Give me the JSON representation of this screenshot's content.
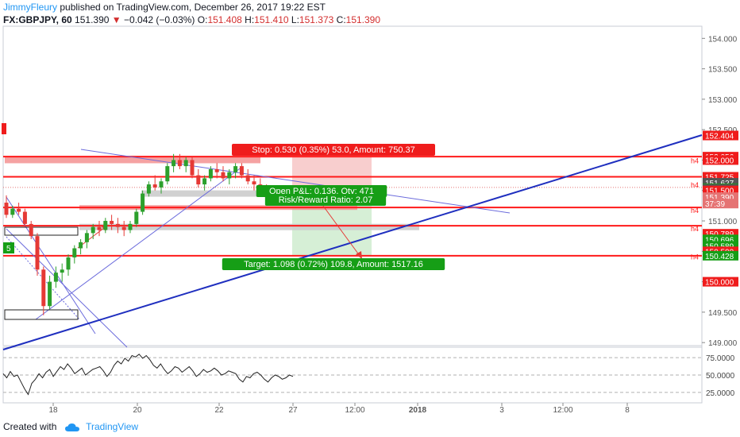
{
  "header": {
    "author": "JimmyFleury",
    "published": "published on TradingView.com, December 26, 2017 19:22 EST",
    "symbol": "FX:GBPJPY, 60",
    "price": "151.390",
    "change_arrow": "▼",
    "change": "−0.042 (−0.03%)",
    "o_label": "O:",
    "o": "151.408",
    "h_label": "H:",
    "h": "151.410",
    "l_label": "L:",
    "l": "151.373",
    "c_label": "C:",
    "c": "151.390"
  },
  "footer": {
    "created_with": "Created with",
    "brand": "TradingView"
  },
  "colors": {
    "level_line": "#ff1a1a",
    "trend_line": "#1f2fbf",
    "thin_trend": "#6b6bdc",
    "stop_zone": "#f7c6c6",
    "target_zone": "#cfeccf",
    "badge_red": "#ef1c1c",
    "badge_green": "#169e16",
    "candle_up": "#2ca02c",
    "candle_down": "#e53935"
  },
  "chart_data": {
    "type": "candlestick",
    "price_axis": {
      "ylim": [
        148.95,
        154.2
      ],
      "ticks": [
        "154.000",
        "153.500",
        "153.000",
        "152.500",
        "152.000",
        "151.500",
        "151.000",
        "150.500",
        "150.000",
        "149.500",
        "149.000"
      ]
    },
    "price_labels": [
      {
        "text": "152.404",
        "value": 152.404,
        "color": "#ef1c1c"
      },
      {
        "text": "152.056",
        "value": 152.056,
        "color": "#ef1c1c"
      },
      {
        "text": "152.000",
        "value": 152.0,
        "color": "#ef1c1c"
      },
      {
        "text": "151.725",
        "value": 151.725,
        "color": "#ef1c1c"
      },
      {
        "text": "151.627",
        "value": 151.627,
        "color": "#555555"
      },
      {
        "text": "151.536",
        "value": 151.536,
        "color": "#169e16"
      },
      {
        "text": "151.526",
        "value": 151.526,
        "color": "#555555"
      },
      {
        "text": "151.500",
        "value": 151.5,
        "color": "#ef1c1c"
      },
      {
        "text": "151.390",
        "value": 151.39,
        "color": "#e57373"
      },
      {
        "text": "37:39",
        "value": 151.285,
        "color": "#e57373"
      },
      {
        "text": "150.789",
        "value": 150.789,
        "color": "#ef1c1c"
      },
      {
        "text": "150.696",
        "value": 150.696,
        "color": "#169e16"
      },
      {
        "text": "150.589",
        "value": 150.589,
        "color": "#169e16"
      },
      {
        "text": "150.500",
        "value": 150.5,
        "color": "#ef1c1c"
      },
      {
        "text": "150.428",
        "value": 150.428,
        "color": "#169e16"
      },
      {
        "text": "150.000",
        "value": 150.0,
        "color": "#ef1c1c"
      }
    ],
    "horizontal_levels": [
      152.056,
      151.725,
      151.22,
      150.92,
      150.428
    ],
    "h4_tags": [
      {
        "text": "h4",
        "value": 152.0
      },
      {
        "text": "h4",
        "value": 151.6
      },
      {
        "text": "h4",
        "value": 151.18
      },
      {
        "text": "h4",
        "value": 150.88
      },
      {
        "text": "h4",
        "value": 150.42
      }
    ],
    "position": {
      "stop_label": "Stop: 0.530 (0.35%) 53.0, Amount: 750.37",
      "pnl_label": "Open P&L: 0.136, Qty: 471",
      "rr_label": "Risk/Reward Ratio: 2.07",
      "target_label": "Target: 1.098 (0.72%) 109.8, Amount: 1517.16",
      "entry": 151.526,
      "stop": 152.056,
      "target": 150.428
    },
    "time_axis": [
      "18",
      "20",
      "22",
      "27",
      "12:00",
      "2018",
      "3",
      "12:00",
      "8"
    ],
    "oscillator": {
      "ticks": [
        "75.0000",
        "50.0000",
        "25.0000"
      ],
      "ylim": [
        10,
        90
      ],
      "values": [
        52,
        46,
        55,
        48,
        50,
        40,
        30,
        22,
        38,
        44,
        52,
        46,
        54,
        58,
        48,
        55,
        62,
        58,
        66,
        60,
        52,
        56,
        60,
        50,
        54,
        58,
        60,
        62,
        56,
        48,
        54,
        64,
        70,
        66,
        74,
        70,
        78,
        76,
        80,
        74,
        78,
        72,
        64,
        60,
        66,
        58,
        52,
        56,
        62,
        60,
        54,
        58,
        62,
        56,
        48,
        52,
        58,
        54,
        56,
        60,
        56,
        50,
        52,
        56,
        54,
        52,
        44,
        40,
        48,
        46,
        52,
        54,
        50,
        44,
        40,
        46,
        50,
        48,
        44,
        46,
        50,
        48
      ]
    },
    "candles": [
      [
        151.3,
        151.42,
        151.05,
        151.1
      ],
      [
        151.1,
        151.25,
        151.05,
        151.2
      ],
      [
        151.2,
        151.3,
        151.1,
        151.15
      ],
      [
        151.15,
        151.2,
        150.9,
        150.95
      ],
      [
        150.95,
        151.0,
        150.7,
        150.75
      ],
      [
        150.75,
        150.8,
        150.1,
        150.2
      ],
      [
        150.2,
        150.25,
        149.45,
        149.6
      ],
      [
        149.6,
        150.1,
        149.55,
        150.0
      ],
      [
        150.0,
        150.25,
        149.9,
        150.15
      ],
      [
        150.15,
        150.3,
        150.0,
        150.2
      ],
      [
        150.2,
        150.45,
        150.1,
        150.4
      ],
      [
        150.4,
        150.6,
        150.3,
        150.55
      ],
      [
        150.55,
        150.7,
        150.45,
        150.65
      ],
      [
        150.65,
        150.85,
        150.55,
        150.8
      ],
      [
        150.8,
        150.95,
        150.7,
        150.9
      ],
      [
        150.9,
        151.0,
        150.75,
        150.85
      ],
      [
        150.85,
        151.05,
        150.8,
        151.0
      ],
      [
        151.0,
        151.1,
        150.85,
        150.95
      ],
      [
        150.95,
        151.05,
        150.8,
        150.9
      ],
      [
        150.9,
        151.0,
        150.75,
        150.85
      ],
      [
        150.85,
        151.0,
        150.8,
        150.95
      ],
      [
        150.95,
        151.2,
        150.9,
        151.15
      ],
      [
        151.15,
        151.5,
        151.1,
        151.45
      ],
      [
        151.45,
        151.65,
        151.4,
        151.6
      ],
      [
        151.6,
        151.75,
        151.5,
        151.55
      ],
      [
        151.55,
        151.7,
        151.45,
        151.65
      ],
      [
        151.65,
        151.95,
        151.6,
        151.9
      ],
      [
        151.9,
        152.1,
        151.8,
        152.0
      ],
      [
        152.0,
        152.1,
        151.85,
        151.9
      ],
      [
        151.9,
        152.05,
        151.8,
        152.0
      ],
      [
        152.0,
        152.05,
        151.7,
        151.75
      ],
      [
        151.75,
        151.85,
        151.55,
        151.6
      ],
      [
        151.6,
        151.75,
        151.5,
        151.7
      ],
      [
        151.7,
        151.9,
        151.65,
        151.85
      ],
      [
        151.85,
        151.95,
        151.7,
        151.8
      ],
      [
        151.8,
        151.9,
        151.65,
        151.7
      ],
      [
        151.7,
        151.85,
        151.6,
        151.8
      ],
      [
        151.8,
        151.95,
        151.7,
        151.9
      ],
      [
        151.9,
        151.95,
        151.7,
        151.75
      ],
      [
        151.75,
        151.85,
        151.6,
        151.65
      ],
      [
        151.65,
        151.75,
        151.5,
        151.6
      ],
      [
        151.6,
        151.7,
        151.45,
        151.5
      ],
      [
        151.5,
        151.6,
        151.35,
        151.45
      ],
      [
        151.45,
        151.55,
        151.35,
        151.4
      ]
    ]
  }
}
